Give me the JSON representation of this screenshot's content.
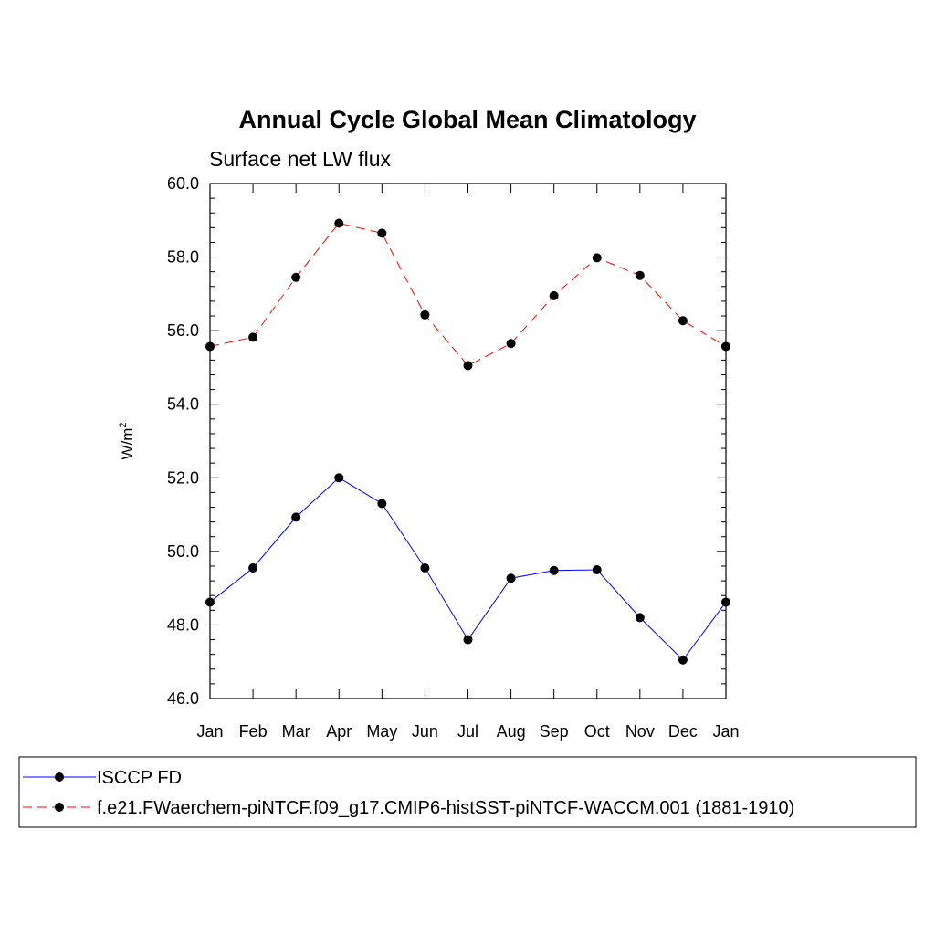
{
  "chart_data": {
    "type": "line",
    "title": "Annual Cycle Global Mean Climatology",
    "subtitle": "Surface net LW flux",
    "xlabel": "",
    "ylabel": "W/m",
    "ylabel_sup": "2",
    "ylim": [
      46.0,
      60.0
    ],
    "yticks": [
      "46.0",
      "48.0",
      "50.0",
      "52.0",
      "54.0",
      "56.0",
      "58.0",
      "60.0"
    ],
    "categories": [
      "Jan",
      "Feb",
      "Mar",
      "Apr",
      "May",
      "Jun",
      "Jul",
      "Aug",
      "Sep",
      "Oct",
      "Nov",
      "Dec",
      "Jan"
    ],
    "grid": false,
    "legend_position": "bottom",
    "series": [
      {
        "name": "ISCCP FD",
        "color": "#0000ff",
        "line_style": "solid",
        "marker": "filled-circle",
        "values": [
          48.62,
          49.55,
          50.93,
          52.0,
          51.3,
          49.55,
          47.6,
          49.27,
          49.48,
          49.5,
          48.2,
          47.05,
          48.62
        ]
      },
      {
        "name": "f.e21.FWaerchem-piNTCF.f09_g17.CMIP6-histSST-piNTCF-WACCM.001 (1881-1910)",
        "color": "#ff0000",
        "line_style": "dashed",
        "marker": "filled-circle",
        "values": [
          55.57,
          55.82,
          57.45,
          58.92,
          58.65,
          56.43,
          55.05,
          55.65,
          56.95,
          57.98,
          57.5,
          56.27,
          55.57
        ]
      }
    ]
  }
}
